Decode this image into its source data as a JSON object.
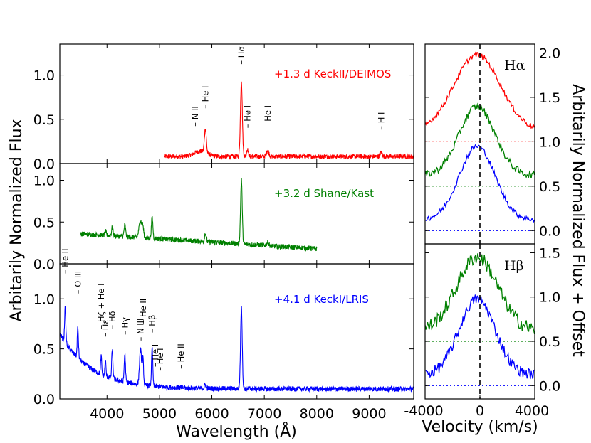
{
  "chart_data": [
    {
      "type": "line",
      "panel": "spectra",
      "xlabel": "Wavelength (Å)",
      "ylabel": "Arbitarily Normalized Flux",
      "xlim": [
        3100,
        9850
      ],
      "x_ticks": [
        "4000",
        "5000",
        "6000",
        "7000",
        "8000",
        "9000"
      ],
      "subpanels": [
        {
          "label": "+1.3 d KeckII/DEIMOS",
          "color": "#ff0000",
          "ylim": [
            0,
            1.35
          ],
          "y_ticks": [
            "0.0",
            "0.5",
            "1.0"
          ],
          "range": [
            5100,
            9850
          ],
          "base": 0.08,
          "features": [
            {
              "center": 5780,
              "amp": 0.06,
              "width": 120
            },
            {
              "center": 5876,
              "amp": 0.27,
              "width": 18
            },
            {
              "center": 6563,
              "amp": 0.86,
              "width": 18
            },
            {
              "center": 6678,
              "amp": 0.08,
              "width": 16
            },
            {
              "center": 7065,
              "amp": 0.07,
              "width": 22
            },
            {
              "center": 9230,
              "amp": 0.05,
              "width": 20
            }
          ],
          "noise": 0.025,
          "line_ids": [
            {
              "text": "N II",
              "wave": 5680,
              "y": 0.42
            },
            {
              "text": "He I",
              "wave": 5876,
              "y": 0.62
            },
            {
              "text": "Hα",
              "wave": 6563,
              "y": 1.12
            },
            {
              "text": "He I",
              "wave": 6678,
              "y": 0.4
            },
            {
              "text": "He I",
              "wave": 7065,
              "y": 0.4
            },
            {
              "text": "H I",
              "wave": 9230,
              "y": 0.38
            }
          ]
        },
        {
          "label": "+3.2 d Shane/Kast",
          "color": "#008000",
          "ylim": [
            0,
            1.2
          ],
          "y_ticks": [
            "0.0",
            "0.5",
            "1.0"
          ],
          "range": [
            3500,
            8000
          ],
          "base": 0.3,
          "slope": -4e-05,
          "features": [
            {
              "center": 3970,
              "amp": 0.05,
              "width": 12
            },
            {
              "center": 4101,
              "amp": 0.1,
              "width": 14
            },
            {
              "center": 4340,
              "amp": 0.14,
              "width": 14
            },
            {
              "center": 4640,
              "amp": 0.2,
              "width": 28
            },
            {
              "center": 4686,
              "amp": 0.1,
              "width": 14
            },
            {
              "center": 4861,
              "amp": 0.25,
              "width": 14
            },
            {
              "center": 5876,
              "amp": 0.1,
              "width": 16
            },
            {
              "center": 6563,
              "amp": 0.78,
              "width": 16
            },
            {
              "center": 7065,
              "amp": 0.04,
              "width": 20
            }
          ],
          "noise": 0.03,
          "line_ids": []
        },
        {
          "label": "+4.1 d KeckI/LRIS",
          "color": "#0000ff",
          "ylim": [
            0,
            1.35
          ],
          "y_ticks": [
            "0.0",
            "0.5",
            "1.0"
          ],
          "range": [
            3100,
            9850
          ],
          "base": 0.1,
          "blue": {
            "amp": 0.55,
            "scale": 600
          },
          "features": [
            {
              "center": 3203,
              "amp": 0.35,
              "width": 12
            },
            {
              "center": 3444,
              "amp": 0.3,
              "width": 12
            },
            {
              "center": 3889,
              "amp": 0.18,
              "width": 10
            },
            {
              "center": 3970,
              "amp": 0.15,
              "width": 10
            },
            {
              "center": 4101,
              "amp": 0.28,
              "width": 12
            },
            {
              "center": 4340,
              "amp": 0.28,
              "width": 12
            },
            {
              "center": 4640,
              "amp": 0.35,
              "width": 20
            },
            {
              "center": 4686,
              "amp": 0.25,
              "width": 12
            },
            {
              "center": 4861,
              "amp": 0.38,
              "width": 12
            },
            {
              "center": 5876,
              "amp": 0.04,
              "width": 14
            },
            {
              "center": 6563,
              "amp": 0.84,
              "width": 16
            }
          ],
          "noise": 0.025,
          "line_ids": [
            {
              "text": "He II",
              "wave": 3203,
              "y": 1.25
            },
            {
              "text": "O III",
              "wave": 3444,
              "y": 1.05
            },
            {
              "text": "Hζ + He I",
              "wave": 3889,
              "y": 0.7
            },
            {
              "text": "Hε",
              "wave": 3970,
              "y": 0.62
            },
            {
              "text": "Hδ",
              "wave": 4101,
              "y": 0.7
            },
            {
              "text": "Hγ",
              "wave": 4340,
              "y": 0.64
            },
            {
              "text": "N III",
              "wave": 4640,
              "y": 0.58
            },
            {
              "text": "He II",
              "wave": 4686,
              "y": 0.75
            },
            {
              "text": "Hβ",
              "wave": 4861,
              "y": 0.66
            },
            {
              "text": "He I",
              "wave": 4922,
              "y": 0.32
            },
            {
              "text": "He I",
              "wave": 5016,
              "y": 0.28
            },
            {
              "text": "He II",
              "wave": 5412,
              "y": 0.3
            }
          ]
        }
      ]
    },
    {
      "type": "line",
      "panel": "velocity",
      "xlabel": "Velocity (km/s)",
      "ylabel": "Arbitarily Normalized Flux + Offset",
      "xlim": [
        -4000,
        4000
      ],
      "x_ticks": [
        "-4000",
        "0",
        "4000"
      ],
      "subpanels": [
        {
          "label": "Hα",
          "ylim": [
            -0.15,
            2.1
          ],
          "y_ticks": [
            "0.0",
            "0.5",
            "1.0",
            "1.5",
            "2.0"
          ],
          "series": [
            {
              "name": "+1.3 d",
              "color": "#ff0000",
              "offset": 1.0,
              "peak": 0.98,
              "width": 1700,
              "noise": 0.03
            },
            {
              "name": "+3.2 d",
              "color": "#008000",
              "offset": 0.5,
              "peak": 0.9,
              "width": 1300,
              "noise": 0.04
            },
            {
              "name": "+4.1 d",
              "color": "#0000ff",
              "offset": 0.0,
              "peak": 0.95,
              "width": 1300,
              "noise": 0.03
            }
          ]
        },
        {
          "label": "Hβ",
          "ylim": [
            -0.15,
            1.6
          ],
          "y_ticks": [
            "0.0",
            "0.5",
            "1.0",
            "1.5"
          ],
          "series": [
            {
              "name": "+3.2 d",
              "color": "#008000",
              "offset": 0.5,
              "peak": 0.95,
              "width": 1500,
              "noise": 0.08
            },
            {
              "name": "+4.1 d",
              "color": "#0000ff",
              "offset": 0.0,
              "peak": 0.98,
              "width": 1300,
              "noise": 0.06
            }
          ]
        }
      ]
    }
  ]
}
